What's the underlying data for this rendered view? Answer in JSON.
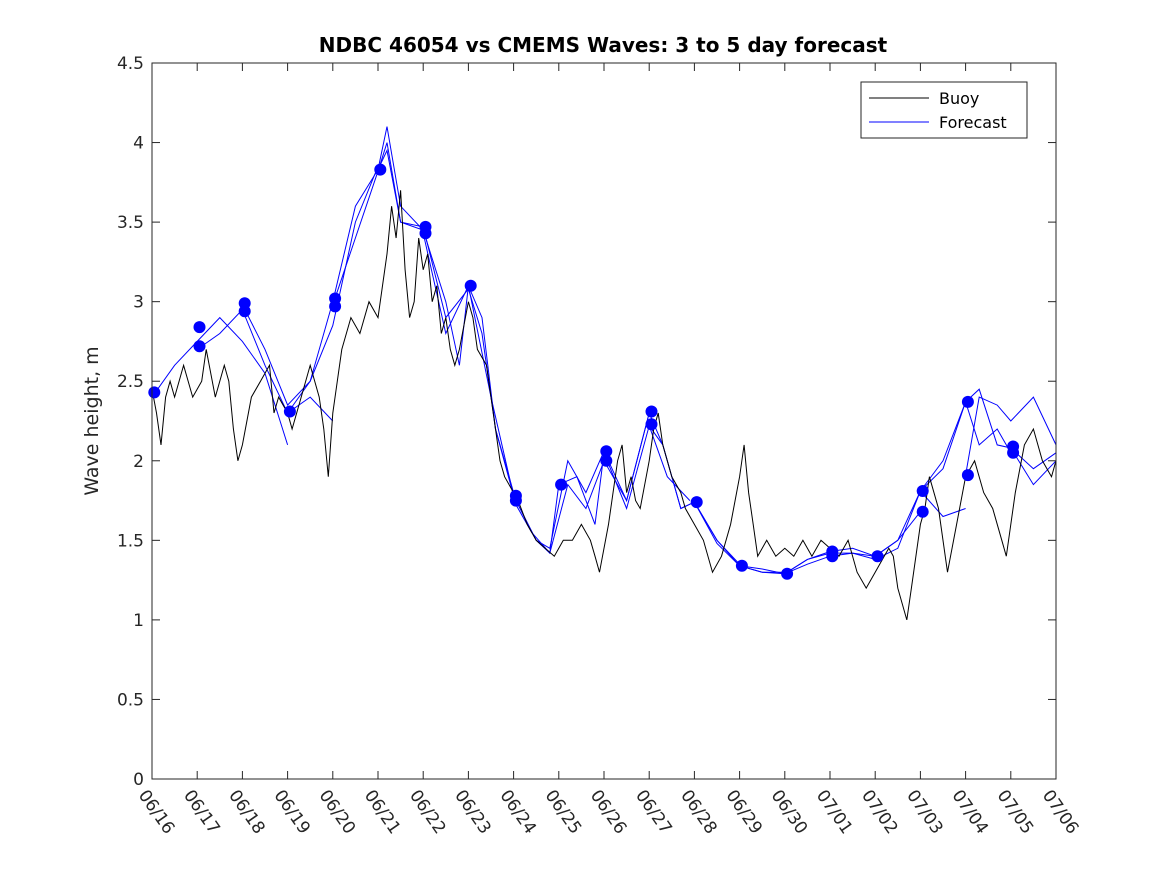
{
  "chart_data": {
    "type": "line",
    "title": "NDBC 46054 vs CMEMS Waves: 3 to 5 day forecast",
    "xlabel": "",
    "ylabel": "Wave height, m",
    "x_ticks": [
      "06/16",
      "06/17",
      "06/18",
      "06/19",
      "06/20",
      "06/21",
      "06/22",
      "06/23",
      "06/24",
      "06/25",
      "06/26",
      "06/27",
      "06/28",
      "06/29",
      "06/30",
      "07/01",
      "07/02",
      "07/03",
      "07/04",
      "07/05",
      "07/06"
    ],
    "xlim": [
      0,
      20
    ],
    "x_units": "days since 06/16",
    "ylim": [
      0,
      4.5
    ],
    "y_ticks": [
      0,
      0.5,
      1,
      1.5,
      2,
      2.5,
      3,
      3.5,
      4,
      4.5
    ],
    "y_tick_labels": [
      "0",
      "0.5",
      "1",
      "1.5",
      "2",
      "2.5",
      "3",
      "3.5",
      "4",
      "4.5"
    ],
    "grid": false,
    "legend_position": "top-right",
    "colors": {
      "buoy": "#000000",
      "forecast": "#0000ff",
      "axes": "#262626"
    },
    "buoy_series": {
      "name": "Buoy",
      "points": [
        [
          0,
          2.45
        ],
        [
          0.1,
          2.3
        ],
        [
          0.2,
          2.1
        ],
        [
          0.3,
          2.4
        ],
        [
          0.4,
          2.5
        ],
        [
          0.5,
          2.4
        ],
        [
          0.7,
          2.6
        ],
        [
          0.9,
          2.4
        ],
        [
          1.1,
          2.5
        ],
        [
          1.2,
          2.7
        ],
        [
          1.4,
          2.4
        ],
        [
          1.6,
          2.6
        ],
        [
          1.7,
          2.5
        ],
        [
          1.8,
          2.2
        ],
        [
          1.9,
          2.0
        ],
        [
          2.0,
          2.1
        ],
        [
          2.2,
          2.4
        ],
        [
          2.4,
          2.5
        ],
        [
          2.6,
          2.6
        ],
        [
          2.7,
          2.3
        ],
        [
          2.8,
          2.4
        ],
        [
          3.0,
          2.3
        ],
        [
          3.1,
          2.2
        ],
        [
          3.3,
          2.4
        ],
        [
          3.5,
          2.6
        ],
        [
          3.7,
          2.4
        ],
        [
          3.8,
          2.2
        ],
        [
          3.9,
          1.9
        ],
        [
          4.0,
          2.3
        ],
        [
          4.1,
          2.5
        ],
        [
          4.2,
          2.7
        ],
        [
          4.4,
          2.9
        ],
        [
          4.6,
          2.8
        ],
        [
          4.8,
          3.0
        ],
        [
          5.0,
          2.9
        ],
        [
          5.2,
          3.3
        ],
        [
          5.3,
          3.6
        ],
        [
          5.4,
          3.4
        ],
        [
          5.5,
          3.7
        ],
        [
          5.6,
          3.2
        ],
        [
          5.7,
          2.9
        ],
        [
          5.8,
          3.0
        ],
        [
          5.9,
          3.4
        ],
        [
          6.0,
          3.2
        ],
        [
          6.1,
          3.3
        ],
        [
          6.2,
          3.0
        ],
        [
          6.3,
          3.1
        ],
        [
          6.4,
          2.8
        ],
        [
          6.5,
          2.9
        ],
        [
          6.6,
          2.7
        ],
        [
          6.7,
          2.6
        ],
        [
          6.8,
          2.7
        ],
        [
          7.0,
          3.0
        ],
        [
          7.1,
          2.9
        ],
        [
          7.2,
          2.7
        ],
        [
          7.4,
          2.6
        ],
        [
          7.5,
          2.4
        ],
        [
          7.6,
          2.2
        ],
        [
          7.7,
          2.0
        ],
        [
          7.8,
          1.9
        ],
        [
          8.0,
          1.8
        ],
        [
          8.1,
          1.75
        ],
        [
          8.3,
          1.6
        ],
        [
          8.5,
          1.5
        ],
        [
          8.7,
          1.45
        ],
        [
          8.9,
          1.4
        ],
        [
          9.1,
          1.5
        ],
        [
          9.3,
          1.5
        ],
        [
          9.5,
          1.6
        ],
        [
          9.7,
          1.5
        ],
        [
          9.8,
          1.4
        ],
        [
          9.9,
          1.3
        ],
        [
          10.1,
          1.6
        ],
        [
          10.3,
          2.0
        ],
        [
          10.4,
          2.1
        ],
        [
          10.5,
          1.8
        ],
        [
          10.6,
          1.9
        ],
        [
          10.7,
          1.75
        ],
        [
          10.8,
          1.7
        ],
        [
          11.0,
          2.0
        ],
        [
          11.1,
          2.2
        ],
        [
          11.2,
          2.3
        ],
        [
          11.3,
          2.1
        ],
        [
          11.4,
          2.0
        ],
        [
          11.5,
          1.9
        ],
        [
          11.7,
          1.8
        ],
        [
          11.8,
          1.7
        ],
        [
          12.0,
          1.6
        ],
        [
          12.2,
          1.5
        ],
        [
          12.4,
          1.3
        ],
        [
          12.6,
          1.4
        ],
        [
          12.8,
          1.6
        ],
        [
          13.0,
          1.9
        ],
        [
          13.1,
          2.1
        ],
        [
          13.2,
          1.8
        ],
        [
          13.3,
          1.6
        ],
        [
          13.4,
          1.4
        ],
        [
          13.6,
          1.5
        ],
        [
          13.8,
          1.4
        ],
        [
          14.0,
          1.45
        ],
        [
          14.2,
          1.4
        ],
        [
          14.4,
          1.5
        ],
        [
          14.6,
          1.4
        ],
        [
          14.8,
          1.5
        ],
        [
          15.0,
          1.45
        ],
        [
          15.2,
          1.4
        ],
        [
          15.4,
          1.5
        ],
        [
          15.6,
          1.3
        ],
        [
          15.8,
          1.2
        ],
        [
          16.0,
          1.3
        ],
        [
          16.2,
          1.4
        ],
        [
          16.3,
          1.45
        ],
        [
          16.4,
          1.4
        ],
        [
          16.5,
          1.2
        ],
        [
          16.6,
          1.1
        ],
        [
          16.7,
          1.0
        ],
        [
          16.8,
          1.2
        ],
        [
          17.0,
          1.6
        ],
        [
          17.1,
          1.7
        ],
        [
          17.2,
          1.9
        ],
        [
          17.4,
          1.7
        ],
        [
          17.6,
          1.3
        ],
        [
          17.8,
          1.6
        ],
        [
          18.0,
          1.9
        ],
        [
          18.2,
          2.0
        ],
        [
          18.4,
          1.8
        ],
        [
          18.6,
          1.7
        ],
        [
          18.8,
          1.5
        ],
        [
          18.9,
          1.4
        ],
        [
          19.0,
          1.6
        ],
        [
          19.1,
          1.8
        ],
        [
          19.3,
          2.1
        ],
        [
          19.5,
          2.2
        ],
        [
          19.7,
          2.0
        ],
        [
          19.9,
          1.9
        ],
        [
          20.0,
          2.0
        ]
      ]
    },
    "forecast_series": {
      "name": "Forecast",
      "runs": [
        [
          [
            0,
            2.4
          ],
          [
            0.5,
            2.6
          ],
          [
            1,
            2.75
          ],
          [
            1.5,
            2.9
          ],
          [
            2,
            2.75
          ],
          [
            2.5,
            2.55
          ],
          [
            3,
            2.1
          ]
        ],
        [
          [
            1,
            2.7
          ],
          [
            1.5,
            2.8
          ],
          [
            2,
            2.95
          ],
          [
            2.5,
            2.6
          ],
          [
            3,
            2.3
          ],
          [
            3.5,
            2.4
          ],
          [
            4,
            2.25
          ]
        ],
        [
          [
            2,
            2.98
          ],
          [
            2.5,
            2.7
          ],
          [
            3,
            2.35
          ],
          [
            3.5,
            2.5
          ],
          [
            4,
            2.85
          ],
          [
            4.5,
            3.5
          ],
          [
            5,
            3.85
          ]
        ],
        [
          [
            3,
            2.3
          ],
          [
            3.5,
            2.5
          ],
          [
            4,
            3.0
          ],
          [
            4.5,
            3.6
          ],
          [
            5,
            3.83
          ],
          [
            5.2,
            4.1
          ],
          [
            5.5,
            3.6
          ],
          [
            6,
            3.45
          ]
        ],
        [
          [
            4,
            2.98
          ],
          [
            4.5,
            3.4
          ],
          [
            5,
            3.82
          ],
          [
            5.2,
            4.0
          ],
          [
            5.5,
            3.5
          ],
          [
            6,
            3.45
          ],
          [
            6.5,
            3.0
          ],
          [
            6.8,
            2.6
          ],
          [
            7,
            3.1
          ]
        ],
        [
          [
            5,
            3.83
          ],
          [
            5.2,
            3.95
          ],
          [
            5.5,
            3.5
          ],
          [
            6,
            3.47
          ],
          [
            6.5,
            2.9
          ],
          [
            7,
            3.08
          ],
          [
            7.3,
            2.8
          ],
          [
            7.6,
            2.2
          ],
          [
            8,
            1.8
          ]
        ],
        [
          [
            6,
            3.43
          ],
          [
            6.5,
            2.8
          ],
          [
            7,
            3.1
          ],
          [
            7.3,
            2.9
          ],
          [
            7.6,
            2.2
          ],
          [
            8,
            1.78
          ],
          [
            8.5,
            1.5
          ],
          [
            8.8,
            1.42
          ],
          [
            9,
            1.85
          ]
        ],
        [
          [
            7,
            3.1
          ],
          [
            7.5,
            2.4
          ],
          [
            8,
            1.78
          ],
          [
            8.5,
            1.5
          ],
          [
            8.8,
            1.45
          ],
          [
            9.2,
            2.0
          ],
          [
            9.6,
            1.8
          ],
          [
            10,
            2.06
          ]
        ],
        [
          [
            8,
            1.75
          ],
          [
            8.4,
            1.55
          ],
          [
            8.8,
            1.42
          ],
          [
            9.2,
            1.85
          ],
          [
            9.6,
            1.7
          ],
          [
            10,
            2.0
          ],
          [
            10.5,
            1.75
          ],
          [
            11,
            2.3
          ]
        ],
        [
          [
            9,
            1.85
          ],
          [
            9.4,
            1.9
          ],
          [
            9.8,
            1.6
          ],
          [
            10,
            2.05
          ],
          [
            10.5,
            1.7
          ],
          [
            11,
            2.22
          ],
          [
            11.4,
            1.9
          ],
          [
            11.9,
            1.75
          ]
        ],
        [
          [
            10,
            2.06
          ],
          [
            10.5,
            1.75
          ],
          [
            11,
            2.3
          ],
          [
            11.3,
            2.1
          ],
          [
            11.7,
            1.7
          ],
          [
            12,
            1.74
          ],
          [
            12.5,
            1.5
          ],
          [
            13,
            1.35
          ]
        ],
        [
          [
            11,
            2.22
          ],
          [
            11.3,
            2.1
          ],
          [
            11.7,
            1.7
          ],
          [
            12,
            1.74
          ],
          [
            12.5,
            1.48
          ],
          [
            13,
            1.34
          ],
          [
            13.5,
            1.3
          ],
          [
            14,
            1.3
          ]
        ],
        [
          [
            12,
            1.74
          ],
          [
            12.5,
            1.5
          ],
          [
            13,
            1.34
          ],
          [
            13.5,
            1.3
          ],
          [
            14,
            1.29
          ],
          [
            14.5,
            1.35
          ],
          [
            15,
            1.4
          ]
        ],
        [
          [
            13,
            1.34
          ],
          [
            13.5,
            1.32
          ],
          [
            14,
            1.29
          ],
          [
            14.5,
            1.38
          ],
          [
            15,
            1.42
          ],
          [
            15.5,
            1.42
          ],
          [
            16,
            1.4
          ]
        ],
        [
          [
            14,
            1.29
          ],
          [
            14.5,
            1.38
          ],
          [
            15,
            1.43
          ],
          [
            15.5,
            1.45
          ],
          [
            16,
            1.4
          ],
          [
            16.5,
            1.5
          ],
          [
            17,
            1.68
          ]
        ],
        [
          [
            15,
            1.4
          ],
          [
            15.5,
            1.42
          ],
          [
            16,
            1.38
          ],
          [
            16.5,
            1.45
          ],
          [
            17,
            1.81
          ],
          [
            17.5,
            1.65
          ],
          [
            18,
            1.7
          ]
        ],
        [
          [
            16,
            1.4
          ],
          [
            16.5,
            1.5
          ],
          [
            17,
            1.81
          ],
          [
            17.5,
            1.95
          ],
          [
            18,
            2.37
          ],
          [
            18.3,
            2.1
          ],
          [
            18.7,
            2.2
          ],
          [
            19,
            2.05
          ]
        ],
        [
          [
            17,
            1.81
          ],
          [
            17.5,
            2.0
          ],
          [
            18,
            2.37
          ],
          [
            18.3,
            2.45
          ],
          [
            18.7,
            2.1
          ],
          [
            19,
            2.08
          ],
          [
            19.5,
            1.85
          ],
          [
            20,
            2.0
          ]
        ],
        [
          [
            18,
            1.91
          ],
          [
            18.3,
            2.4
          ],
          [
            18.7,
            2.35
          ],
          [
            19,
            2.25
          ],
          [
            19.5,
            2.4
          ],
          [
            20,
            2.1
          ]
        ],
        [
          [
            19,
            2.08
          ],
          [
            19.5,
            1.95
          ],
          [
            20,
            2.05
          ]
        ]
      ],
      "markers": [
        [
          0.05,
          2.43
        ],
        [
          1.05,
          2.72
        ],
        [
          1.05,
          2.84
        ],
        [
          2.05,
          2.94
        ],
        [
          2.05,
          2.99
        ],
        [
          3.05,
          2.31
        ],
        [
          4.05,
          2.97
        ],
        [
          4.05,
          3.02
        ],
        [
          5.05,
          3.83
        ],
        [
          6.05,
          3.43
        ],
        [
          6.05,
          3.47
        ],
        [
          7.05,
          3.1
        ],
        [
          8.05,
          1.75
        ],
        [
          8.05,
          1.78
        ],
        [
          9.05,
          1.85
        ],
        [
          10.05,
          2.0
        ],
        [
          10.05,
          2.06
        ],
        [
          11.05,
          2.23
        ],
        [
          11.05,
          2.31
        ],
        [
          12.05,
          1.74
        ],
        [
          13.05,
          1.34
        ],
        [
          14.05,
          1.29
        ],
        [
          15.05,
          1.4
        ],
        [
          15.05,
          1.43
        ],
        [
          16.05,
          1.4
        ],
        [
          17.05,
          1.68
        ],
        [
          17.05,
          1.81
        ],
        [
          18.05,
          1.91
        ],
        [
          18.05,
          2.37
        ],
        [
          19.05,
          2.05
        ],
        [
          19.05,
          2.09
        ]
      ]
    },
    "legend": [
      {
        "label": "Buoy",
        "color": "#000000"
      },
      {
        "label": "Forecast",
        "color": "#0000ff"
      }
    ]
  }
}
